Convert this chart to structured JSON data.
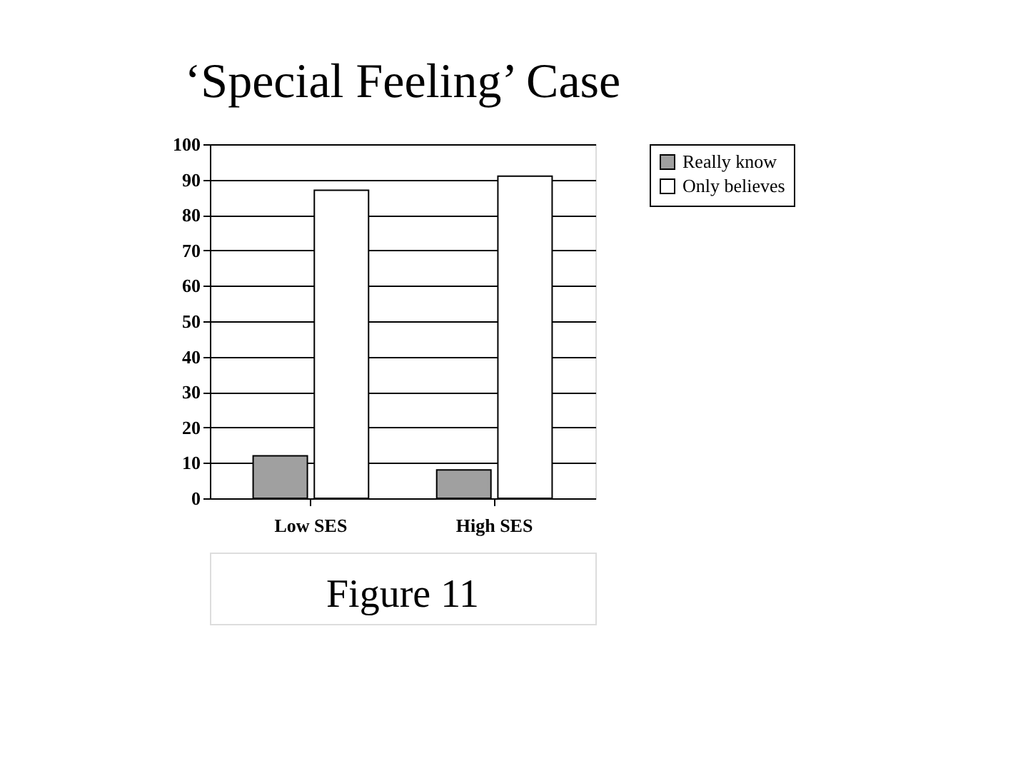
{
  "chart_data": {
    "type": "bar",
    "title": "‘Special Feeling’ Case",
    "categories": [
      "Low SES",
      "High SES"
    ],
    "series": [
      {
        "name": "Really know",
        "color": "#a0a0a0",
        "values": [
          12,
          8
        ]
      },
      {
        "name": "Only believes",
        "color": "#ffffff",
        "values": [
          87,
          91
        ]
      }
    ],
    "ylim": [
      0,
      100
    ],
    "yticks": [
      0,
      10,
      20,
      30,
      40,
      50,
      60,
      70,
      80,
      90,
      100
    ],
    "grid": "y",
    "legend": "right",
    "annotations": [
      "Figure 11"
    ]
  }
}
